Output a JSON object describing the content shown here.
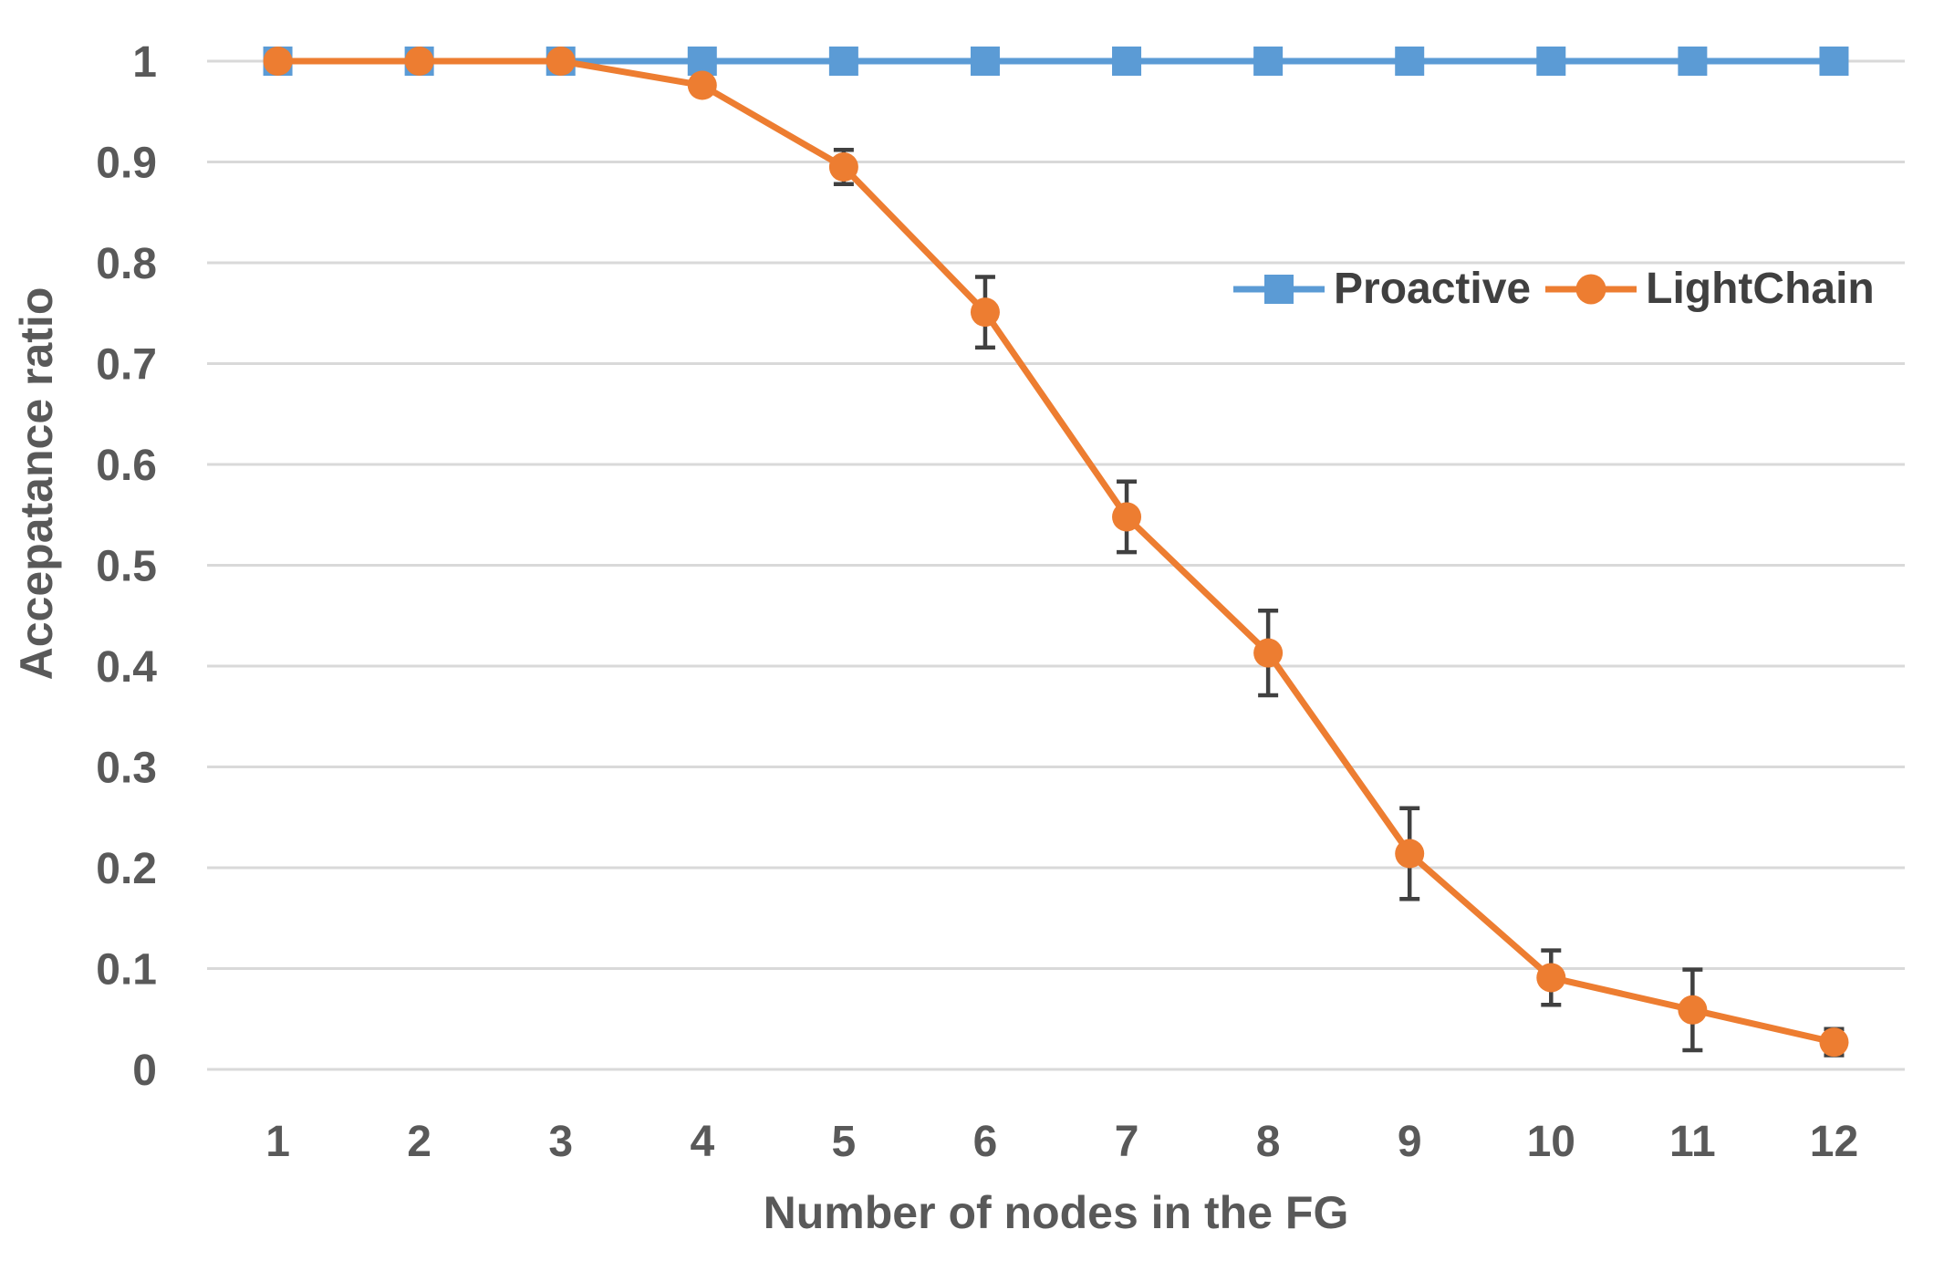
{
  "chart_data": {
    "type": "line",
    "title": "",
    "xlabel": "Number of nodes in the FG",
    "ylabel": "Accepatance ratio",
    "x": [
      1,
      2,
      3,
      4,
      5,
      6,
      7,
      8,
      9,
      10,
      11,
      12
    ],
    "ylim": [
      0,
      1
    ],
    "yticks": [
      0,
      0.1,
      0.2,
      0.3,
      0.4,
      0.5,
      0.6,
      0.7,
      0.8,
      0.9,
      1
    ],
    "ytick_labels": [
      "0",
      "0.1",
      "0.2",
      "0.3",
      "0.4",
      "0.5",
      "0.6",
      "0.7",
      "0.8",
      "0.9",
      "1"
    ],
    "grid": "horizontal",
    "legend_position": "inside-upper-right",
    "series": [
      {
        "name": "Proactive",
        "marker": "square",
        "color": "#5B9BD5",
        "values": [
          1,
          1,
          1,
          1,
          1,
          1,
          1,
          1,
          1,
          1,
          1,
          1
        ],
        "errors": [
          0,
          0,
          0,
          0,
          0,
          0,
          0,
          0,
          0,
          0,
          0,
          0
        ]
      },
      {
        "name": "LightChain",
        "marker": "circle",
        "color": "#ED7D31",
        "values": [
          1,
          1,
          1,
          0.976,
          0.895,
          0.751,
          0.548,
          0.413,
          0.214,
          0.091,
          0.059,
          0.027
        ],
        "errors": [
          0,
          0,
          0,
          0,
          0.017,
          0.035,
          0.035,
          0.042,
          0.045,
          0.027,
          0.04,
          0.013
        ]
      }
    ],
    "colors": {
      "gridline": "#D9D9D9",
      "tick_label": "#595959",
      "axis_title": "#595959",
      "legend_text": "#404040",
      "error_bar": "#404040"
    }
  }
}
